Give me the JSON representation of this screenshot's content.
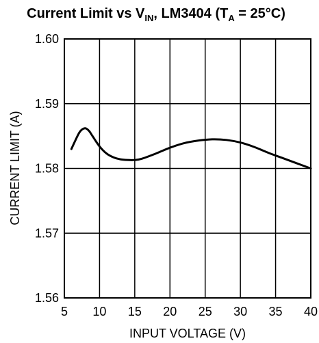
{
  "chart_data": {
    "type": "line",
    "title": {
      "main": "Current Limit vs V",
      "vin_sub": "IN",
      "mid": ", LM3404 (T",
      "ta_sub": "A",
      "end": " = 25°C)"
    },
    "xlabel": "INPUT VOLTAGE (V)",
    "ylabel": "CURRENT LIMIT (A)",
    "xlim": [
      5,
      40
    ],
    "ylim": [
      1.56,
      1.6
    ],
    "xticks": [
      5,
      10,
      15,
      20,
      25,
      30,
      35,
      40
    ],
    "xtick_labels": [
      "5",
      "10",
      "15",
      "20",
      "25",
      "30",
      "35",
      "40"
    ],
    "yticks": [
      1.56,
      1.57,
      1.58,
      1.59,
      1.6
    ],
    "ytick_labels": [
      "1.56",
      "1.57",
      "1.58",
      "1.59",
      "1.60"
    ],
    "grid": true,
    "series": [
      {
        "x": [
          6,
          7,
          7.5,
          8,
          8.5,
          9,
          10,
          11,
          12,
          13,
          14,
          15,
          16,
          18,
          20,
          22,
          24,
          26,
          28,
          30,
          32,
          34,
          36,
          38,
          40
        ],
        "y": [
          1.583,
          1.5853,
          1.586,
          1.5862,
          1.5858,
          1.585,
          1.5834,
          1.5823,
          1.5817,
          1.5814,
          1.5813,
          1.5813,
          1.5815,
          1.5823,
          1.5832,
          1.5839,
          1.5843,
          1.5845,
          1.5844,
          1.584,
          1.5833,
          1.5824,
          1.5816,
          1.5808,
          1.58
        ],
        "color": "#000000"
      }
    ]
  }
}
